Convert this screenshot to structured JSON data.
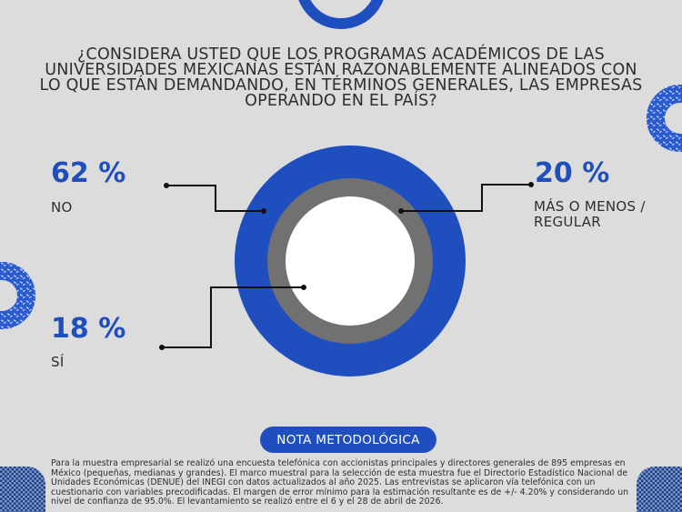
{
  "question": "¿CONSIDERA USTED QUE LOS PROGRAMAS ACADÉMICOS DE LAS UNIVERSIDADES MEXICANAS ESTÁN RAZONABLEMENTE ALINEADOS CON LO QUE ESTÁN DEMANDANDO, EN TÉRMINOS GENERALES, LAS EMPRESAS OPERANDO EN EL PAÍS?",
  "colors": {
    "accent": "#1f4fbf",
    "gray_ring": "#717171",
    "inner": "#ffffff",
    "background": "#dcdcdc",
    "text": "#2e2e2e"
  },
  "chart_data": {
    "type": "pie",
    "title": "",
    "series": [
      {
        "name": "NO",
        "value": 62,
        "value_label": "62 %",
        "color": "#1f4fbf"
      },
      {
        "name": "MÁS O MENOS / REGULAR",
        "value": 20,
        "value_label": "20 %",
        "color": "#717171"
      },
      {
        "name": "SÍ",
        "value": 18,
        "value_label": "18 %",
        "color": "#ffffff"
      }
    ]
  },
  "labels": {
    "no_pct": "62 %",
    "no": "NO",
    "regular_pct": "20 %",
    "regular_line1": "MÁS O MENOS /",
    "regular_line2": "REGULAR",
    "si_pct": "18 %",
    "si": "SÍ"
  },
  "note": {
    "title": "NOTA METODOLÓGICA",
    "text": "Para la muestra empresarial se realizó una encuesta telefónica con accionistas principales y directores generales de 895 empresas en México (pequeñas, medianas y grandes). El marco muestral para la selección de esta muestra fue el Directorio Estadístico Nacional de Unidades Económicas (DENUE) del INEGI con datos actualizados al año 2025. Las entrevistas se aplicaron vía telefónica con un cuestionario con variables precodificadas. El margen de error mínimo para la estimación resultante es de +/- 4.20% y considerando un nivel de confianza de 95.0%. El levantamiento se realizó entre el 6 y el 28 de abril de 2026."
  }
}
